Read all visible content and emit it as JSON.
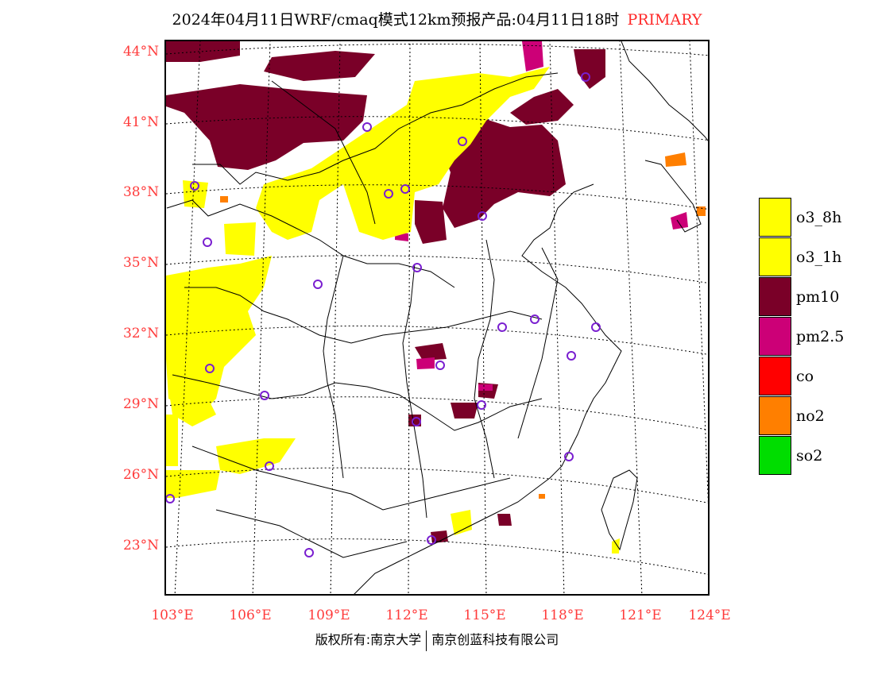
{
  "title": {
    "main": "2024年04月11日WRF/cmaq模式12km预报产品:04月11日18时",
    "tag": "PRIMARY",
    "tag_color": "#ff2a2a"
  },
  "map": {
    "lat_labels": [
      "44°N",
      "41°N",
      "38°N",
      "35°N",
      "32°N",
      "29°N",
      "26°N",
      "23°N"
    ],
    "lon_labels": [
      "103°E",
      "106°E",
      "109°E",
      "112°E",
      "115°E",
      "118°E",
      "121°E",
      "124°E"
    ],
    "label_color": "#ff3b3b"
  },
  "legend": [
    {
      "label": "o3_8h",
      "color": "#ffff00"
    },
    {
      "label": "o3_1h",
      "color": "#ffff00"
    },
    {
      "label": "pm10",
      "color": "#7a0028"
    },
    {
      "label": "pm2.5",
      "color": "#cc0077"
    },
    {
      "label": "co",
      "color": "#ff0000"
    },
    {
      "label": "no2",
      "color": "#ff7f00"
    },
    {
      "label": "so2",
      "color": "#00dd00"
    }
  ],
  "footer": {
    "left": "版权所有:南京大学",
    "right": "南京创蓝科技有限公司"
  }
}
